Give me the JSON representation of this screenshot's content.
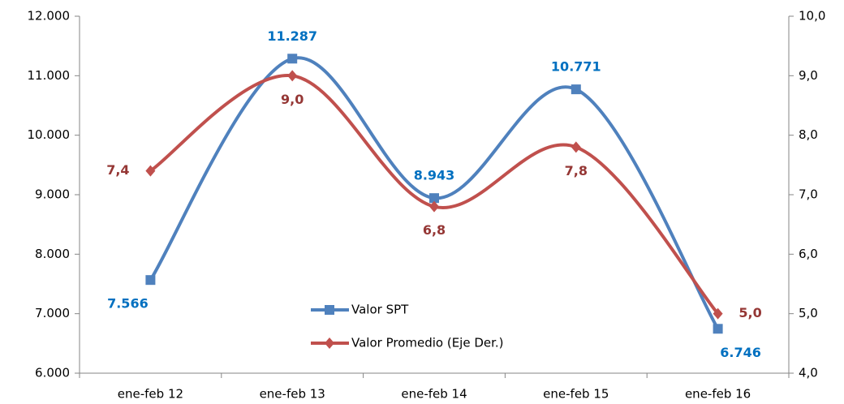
{
  "chart_data": {
    "type": "line",
    "categories": [
      "ene-feb 12",
      "ene-feb 13",
      "ene-feb 14",
      "ene-feb 15",
      "ene-feb 16"
    ],
    "series": [
      {
        "name": "Valor SPT",
        "color": "#4f81bd",
        "marker": "square",
        "values": [
          7566,
          11287,
          8943,
          10771,
          6746
        ],
        "value_labels": [
          "7.566",
          "11.287",
          "8.943",
          "10.771",
          "6.746"
        ],
        "label_color": "#0070c0"
      },
      {
        "name": "Valor Promedio (Eje Der.)",
        "color": "#c0504d",
        "marker": "diamond",
        "axis": "y2",
        "values": [
          7.4,
          9.0,
          6.8,
          7.8,
          5.0
        ],
        "value_labels": [
          "7,4",
          "9,0",
          "6,8",
          "7,8",
          "5,0"
        ],
        "label_color": "#953735"
      }
    ],
    "ylim": [
      6000,
      12000
    ],
    "yticks": [
      {
        "value": 6000,
        "label": "6.000"
      },
      {
        "value": 7000,
        "label": "7.000"
      },
      {
        "value": 8000,
        "label": "8.000"
      },
      {
        "value": 9000,
        "label": "9.000"
      },
      {
        "value": 10000,
        "label": "10.000"
      },
      {
        "value": 11000,
        "label": "11.000"
      },
      {
        "value": 12000,
        "label": "12.000"
      }
    ],
    "y2lim": [
      4,
      10
    ],
    "y2ticks": [
      {
        "value": 4,
        "label": "4,0"
      },
      {
        "value": 5,
        "label": "5,0"
      },
      {
        "value": 6,
        "label": "6,0"
      },
      {
        "value": 7,
        "label": "7,0"
      },
      {
        "value": 8,
        "label": "8,0"
      },
      {
        "value": 9,
        "label": "9,0"
      },
      {
        "value": 10,
        "label": "10,0"
      }
    ],
    "smooth": true,
    "grid": false
  }
}
